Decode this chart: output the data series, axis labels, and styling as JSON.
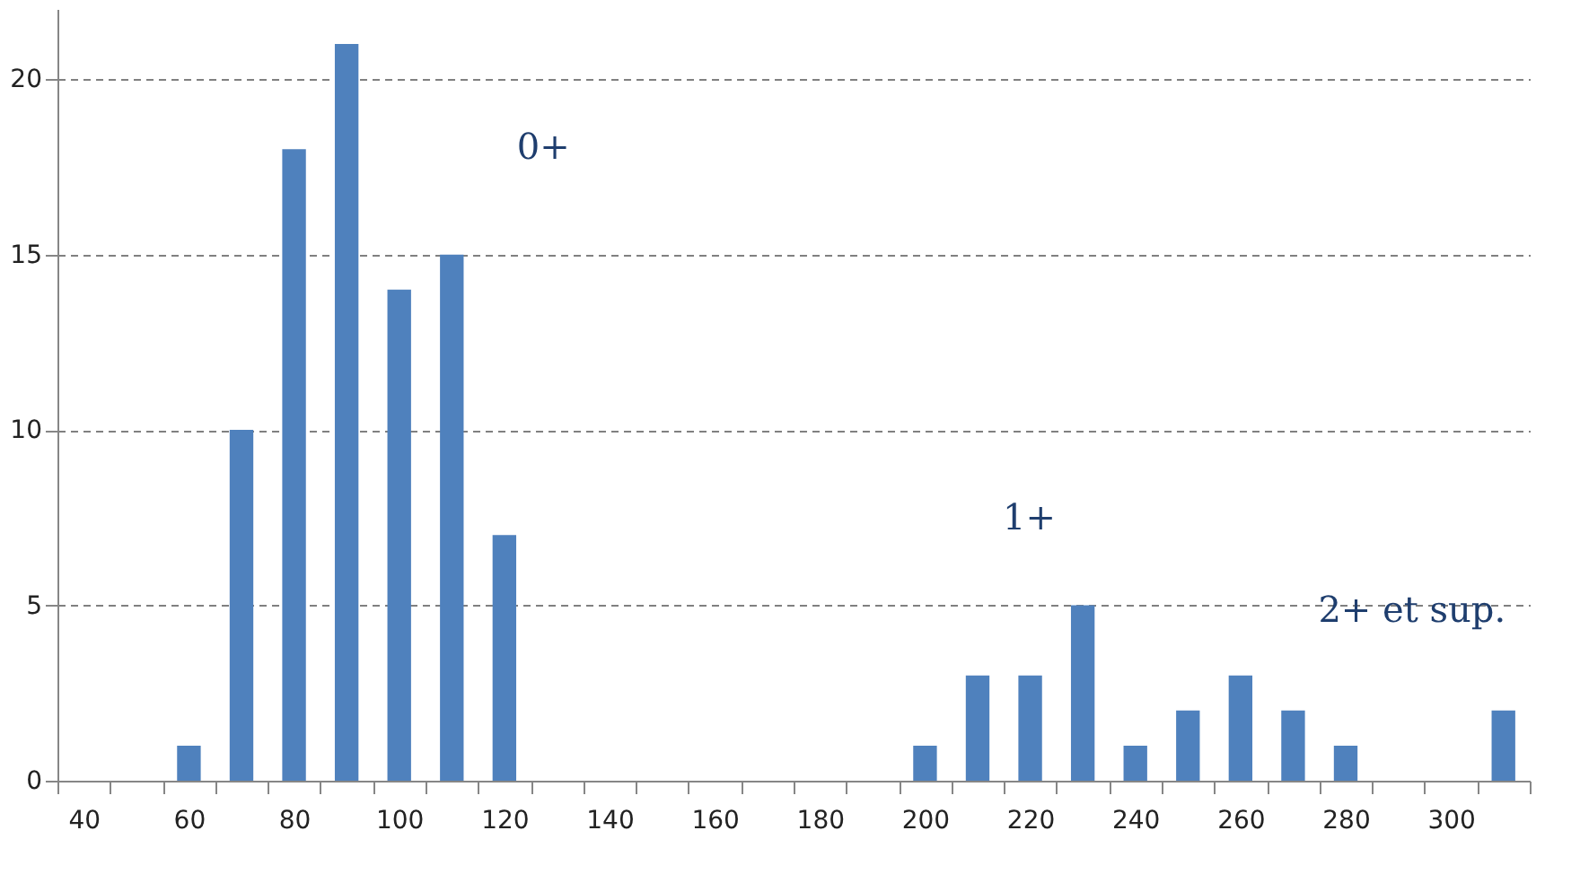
{
  "chart_data": {
    "type": "bar",
    "categories": [
      "40",
      null,
      "60",
      null,
      "80",
      null,
      "100",
      null,
      "120",
      null,
      "140",
      null,
      "160",
      null,
      "180",
      null,
      "200",
      null,
      "220",
      null,
      "240",
      null,
      "260",
      null,
      "280",
      null,
      "300",
      null
    ],
    "values": [
      null,
      null,
      1,
      10,
      18,
      21,
      14,
      15,
      7,
      null,
      null,
      null,
      null,
      null,
      null,
      null,
      1,
      3,
      3,
      5,
      1,
      2,
      3,
      2,
      1,
      null,
      null,
      2
    ],
    "color": "#4f81bd",
    "ylim": [
      0,
      22
    ],
    "yticks": [
      0,
      5,
      10,
      15,
      20
    ],
    "grid": "y",
    "annotations": [
      "0+",
      "1+",
      "2+ et sup."
    ]
  }
}
